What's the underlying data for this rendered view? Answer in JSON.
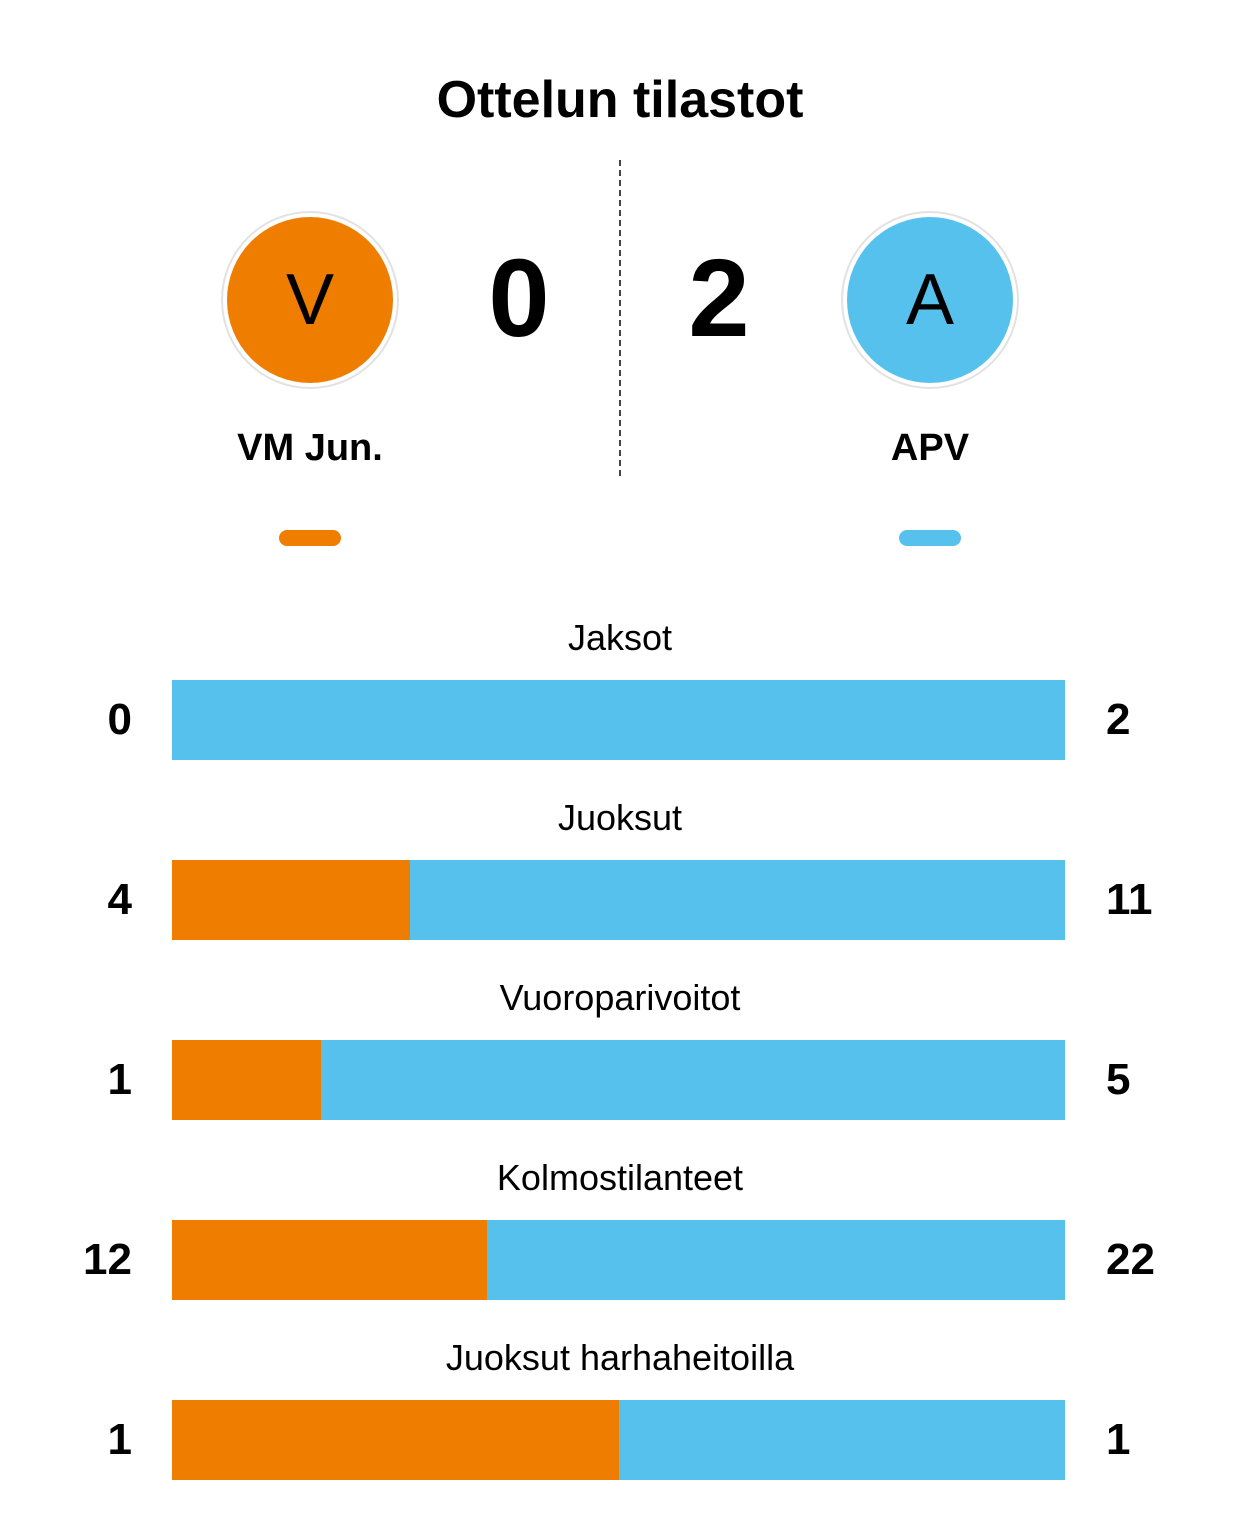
{
  "title": "Ottelun tilastot",
  "colors": {
    "home": "#EF7D00",
    "away": "#57C1EE"
  },
  "home": {
    "initial": "V",
    "name": "VM Jun.",
    "score": "0"
  },
  "away": {
    "initial": "A",
    "name": "APV",
    "score": "2"
  },
  "chart_data": {
    "type": "bar",
    "orientation": "horizontal-stacked-share",
    "categories": [
      "Jaksot",
      "Juoksut",
      "Vuoroparivoitot",
      "Kolmostilanteet",
      "Juoksut harhaheitoilla"
    ],
    "series": [
      {
        "name": "VM Jun.",
        "values": [
          0,
          4,
          1,
          12,
          1
        ]
      },
      {
        "name": "APV",
        "values": [
          2,
          11,
          5,
          22,
          1
        ]
      }
    ]
  }
}
